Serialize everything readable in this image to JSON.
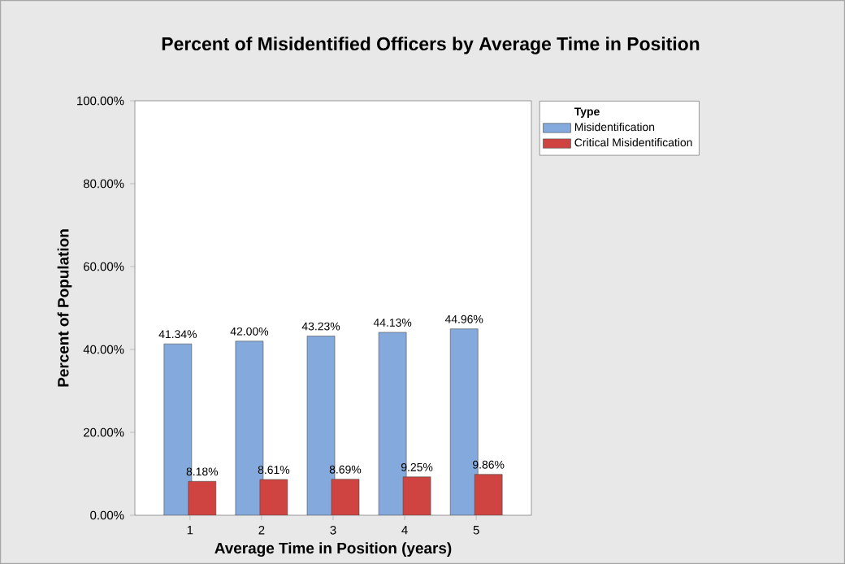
{
  "chart_data": {
    "type": "bar",
    "title": "Percent of Misidentified Officers by Average Time in Position",
    "xlabel": "Average Time in Position (years)",
    "ylabel": "Percent of Population",
    "legend_title": "Type",
    "legend": "top right",
    "categories": [
      "1",
      "2",
      "3",
      "4",
      "5"
    ],
    "series": [
      {
        "name": "Misidentification",
        "color": "#84aadd",
        "values": [
          41.34,
          42.0,
          43.23,
          44.13,
          44.96
        ],
        "value_labels": [
          "41.34%",
          "42.00%",
          "43.23%",
          "44.13%",
          "44.96%"
        ]
      },
      {
        "name": "Critical Misidentification",
        "color": "#cf4441",
        "values": [
          8.18,
          8.61,
          8.69,
          9.25,
          9.86
        ],
        "value_labels": [
          "8.18%",
          "8.61%",
          "8.69%",
          "9.25%",
          "9.86%"
        ]
      }
    ],
    "ylim": [
      0,
      100
    ],
    "yticks": [
      {
        "value": 0,
        "label": "0.00%"
      },
      {
        "value": 20,
        "label": "20.00%"
      },
      {
        "value": 40,
        "label": "40.00%"
      },
      {
        "value": 60,
        "label": "60.00%"
      },
      {
        "value": 80,
        "label": "80.00%"
      },
      {
        "value": 100,
        "label": "100.00%"
      }
    ],
    "grid": false
  }
}
